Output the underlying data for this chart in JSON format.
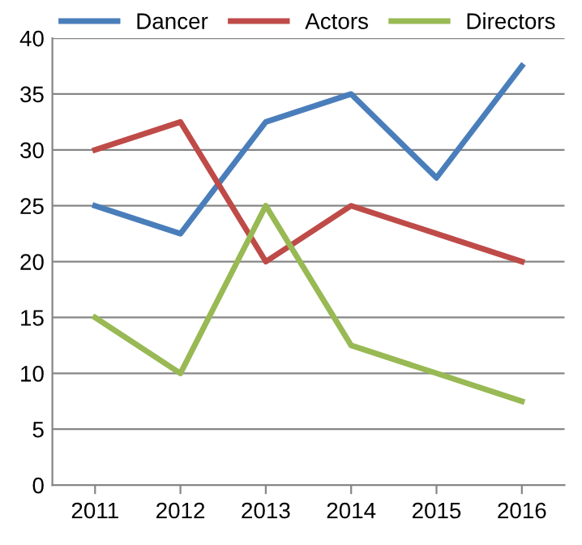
{
  "chart_data": {
    "type": "line",
    "categories": [
      "2011",
      "2012",
      "2013",
      "2014",
      "2015",
      "2016"
    ],
    "series": [
      {
        "name": "Dancer",
        "color": "#4a7ebb",
        "values": [
          25,
          22.5,
          32.5,
          35,
          27.5,
          37.5
        ]
      },
      {
        "name": "Actors",
        "color": "#be4b48",
        "values": [
          30,
          32.5,
          20,
          25,
          22.5,
          20
        ]
      },
      {
        "name": "Directors",
        "color": "#98b954",
        "values": [
          15,
          10,
          25,
          12.5,
          10,
          7.5
        ]
      }
    ],
    "ylim": [
      0,
      40
    ],
    "yticks": [
      0,
      5,
      10,
      15,
      20,
      25,
      30,
      35,
      40
    ],
    "grid": "y",
    "legend": "top",
    "marker": "none",
    "line_style": "solid"
  }
}
